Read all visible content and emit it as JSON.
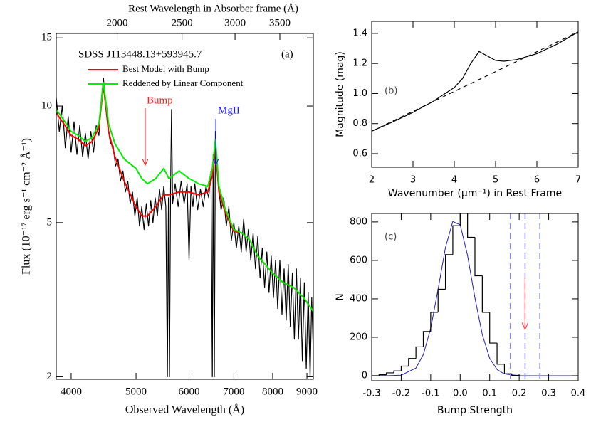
{
  "chart_data": [
    {
      "type": "line",
      "title": "SDSS J113448.13+593945.7",
      "panel_label": "(a)",
      "annotations": [
        {
          "text": "Bump",
          "color": "#ff2020"
        },
        {
          "text": "MgII",
          "color": "#2020ff"
        }
      ],
      "xlabel": "Observed Wavelength (Å)",
      "ylabel": "Flux (10⁻¹⁷ erg s⁻¹ cm⁻² Å⁻¹)",
      "x2label": "Rest Wavelength in Absorber frame (Å)",
      "xscale": "log",
      "yscale": "log",
      "xlim": [
        3800,
        9200
      ],
      "xticks": [
        4000,
        5000,
        6000,
        7000,
        8000,
        9000
      ],
      "x2lim": [
        1622,
        3927
      ],
      "x2ticks": [
        2000,
        2500,
        3000,
        3500
      ],
      "ylim": [
        1.97,
        15.4
      ],
      "yticks": [
        2,
        5,
        10,
        15
      ],
      "series": [
        {
          "color": "#000000",
          "x": [
            3800,
            3840,
            3880,
            3920,
            3960,
            4000,
            4040,
            4080,
            4120,
            4160,
            4200,
            4240,
            4280,
            4320,
            4360,
            4400,
            4440,
            4470,
            4500,
            4540,
            4580,
            4620,
            4660,
            4700,
            4740,
            4780,
            4820,
            4860,
            4900,
            4940,
            4980,
            5020,
            5060,
            5100,
            5140,
            5180,
            5220,
            5260,
            5300,
            5340,
            5380,
            5420,
            5460,
            5500,
            5540,
            5570,
            5590,
            5610,
            5630,
            5650,
            5670,
            5720,
            5780,
            5840,
            5900,
            5960,
            6000,
            6040,
            6080,
            6120,
            6180,
            6240,
            6300,
            6360,
            6420,
            6470,
            6500,
            6520,
            6545,
            6570,
            6600,
            6640,
            6700,
            6760,
            6820,
            6880,
            6940,
            7000,
            7060,
            7120,
            7180,
            7240,
            7300,
            7360,
            7420,
            7480,
            7540,
            7600,
            7660,
            7720,
            7780,
            7840,
            7900,
            7960,
            8020,
            8080,
            8140,
            8200,
            8260,
            8320,
            8380,
            8440,
            8500,
            8560,
            8620,
            8680,
            8740,
            8800,
            8860,
            8920,
            8980,
            9040,
            9100,
            9150,
            9200
          ],
          "values": [
            10.5,
            8.6,
            10.0,
            7.8,
            9.4,
            7.6,
            9.1,
            7.5,
            8.9,
            7.4,
            8.5,
            7.3,
            8.6,
            7.6,
            8.9,
            8.4,
            10.5,
            11.8,
            10.2,
            8.8,
            8.0,
            7.9,
            7.0,
            7.3,
            6.4,
            6.8,
            6.0,
            6.4,
            5.6,
            6.0,
            5.2,
            5.8,
            4.9,
            5.5,
            4.8,
            5.6,
            4.9,
            5.7,
            5.0,
            5.8,
            5.2,
            6.1,
            5.4,
            6.2,
            5.5,
            2.0,
            5.8,
            2.0,
            6.0,
            9.8,
            5.6,
            6.3,
            5.5,
            6.4,
            5.6,
            6.3,
            4.0,
            6.2,
            5.5,
            6.3,
            5.4,
            6.1,
            5.5,
            6.2,
            5.8,
            6.8,
            2.0,
            7.5,
            2.0,
            8.6,
            7.0,
            6.2,
            5.4,
            5.8,
            4.9,
            5.5,
            4.5,
            5.0,
            4.3,
            4.9,
            4.2,
            5.1,
            4.2,
            4.8,
            4.0,
            4.7,
            3.8,
            4.6,
            3.6,
            4.3,
            3.4,
            4.2,
            3.3,
            4.1,
            3.2,
            4.0,
            3.0,
            4.0,
            2.9,
            3.8,
            2.8,
            3.9,
            2.7,
            3.7,
            2.5,
            3.8,
            2.5,
            3.6,
            2.2,
            3.5,
            2.1,
            3.3,
            2.0,
            3.2,
            2.3
          ]
        },
        {
          "name": "Best Model with Bump",
          "color": "#ff0000",
          "x": [
            3800,
            3900,
            4000,
            4100,
            4200,
            4300,
            4400,
            4470,
            4550,
            4650,
            4800,
            5000,
            5100,
            5200,
            5350,
            5500,
            5600,
            5800,
            6000,
            6200,
            6400,
            6500,
            6570,
            6650,
            6800,
            7000,
            7200,
            7400,
            7600,
            7800,
            8000,
            8300,
            8600,
            8900,
            9200
          ],
          "values": [
            9.6,
            9.0,
            8.4,
            8.2,
            7.9,
            8.1,
            8.8,
            11.3,
            8.6,
            7.4,
            6.4,
            5.5,
            5.2,
            5.2,
            5.5,
            5.9,
            5.9,
            6.0,
            6.0,
            5.9,
            6.0,
            6.6,
            7.8,
            6.0,
            5.3,
            4.75,
            4.7,
            4.5,
            4.1,
            3.9,
            3.7,
            3.5,
            3.4,
            3.2,
            2.95
          ]
        },
        {
          "name": "Reddened by Linear Component",
          "color": "#00ee00",
          "x": [
            3800,
            3900,
            4000,
            4100,
            4200,
            4300,
            4400,
            4470,
            4550,
            4650,
            4800,
            5000,
            5100,
            5200,
            5350,
            5500,
            5600,
            5800,
            6000,
            6200,
            6400,
            6500,
            6570,
            6650,
            6800,
            7000,
            7200,
            7400,
            7600,
            7800,
            8000,
            8300,
            8600,
            8900,
            9200
          ],
          "values": [
            9.8,
            9.2,
            8.6,
            8.4,
            8.1,
            8.3,
            9.0,
            11.5,
            9.0,
            8.0,
            7.3,
            6.9,
            6.5,
            6.3,
            6.5,
            6.9,
            6.5,
            6.8,
            6.5,
            6.3,
            6.2,
            6.9,
            8.2,
            6.2,
            5.4,
            4.8,
            4.7,
            4.5,
            4.1,
            3.9,
            3.7,
            3.5,
            3.4,
            3.2,
            2.95
          ]
        }
      ]
    },
    {
      "type": "line",
      "panel_label": "(b)",
      "xlabel": "Wavenumber (μm⁻¹) in Rest Frame",
      "ylabel": "Magnitude (mag)",
      "xlim": [
        2,
        7
      ],
      "xticks": [
        2,
        3,
        4,
        5,
        6,
        7
      ],
      "ylim": [
        0.51,
        1.48
      ],
      "yticks": [
        0.6,
        0.8,
        {
          "value": 1,
          "label": "1.0"
        },
        1.2,
        1.4
      ],
      "series": [
        {
          "color": "#000000",
          "x": [
            2,
            2.5,
            3,
            3.5,
            4,
            4.2,
            4.4,
            4.6,
            4.8,
            5.0,
            5.2,
            5.5,
            6,
            6.5,
            7
          ],
          "values": [
            0.75,
            0.81,
            0.875,
            0.95,
            1.04,
            1.1,
            1.2,
            1.28,
            1.25,
            1.22,
            1.215,
            1.225,
            1.265,
            1.33,
            1.41
          ]
        },
        {
          "color": "#000000",
          "dash": true,
          "x": [
            2,
            7
          ],
          "values": [
            0.75,
            1.41
          ]
        }
      ]
    },
    {
      "type": "histogram",
      "panel_label": "(c)",
      "xlabel": "Bump Strength",
      "ylabel": "N",
      "xlim": [
        -0.3,
        0.4
      ],
      "xticks": [
        -0.3,
        -0.2,
        -0.1,
        {
          "value": 0,
          "label": "0.0"
        },
        0.1,
        0.2,
        0.3,
        0.4
      ],
      "ylim": [
        -26,
        844
      ],
      "yticks": [
        0,
        200,
        400,
        600,
        800
      ],
      "bins": [
        -0.3,
        -0.275,
        -0.25,
        -0.225,
        -0.2,
        -0.175,
        -0.15,
        -0.125,
        -0.1,
        -0.075,
        -0.05,
        -0.025,
        0,
        0.025,
        0.05,
        0.075,
        0.1,
        0.125,
        0.15,
        0.175,
        0.2
      ],
      "counts": [
        0,
        5,
        15,
        25,
        50,
        90,
        150,
        230,
        330,
        450,
        630,
        780,
        850,
        720,
        520,
        330,
        170,
        60,
        10,
        2
      ],
      "color": "#000000",
      "curve": {
        "color": "#2020c0",
        "x": [
          -0.3,
          -0.25,
          -0.2,
          -0.15,
          -0.125,
          -0.1,
          -0.075,
          -0.05,
          -0.025,
          0,
          0.025,
          0.05,
          0.075,
          0.1,
          0.125,
          0.15,
          0.2,
          0.3,
          0.4
        ],
        "values": [
          0,
          0.1,
          3,
          40,
          110,
          247,
          449,
          667,
          802,
          785,
          626,
          405,
          213,
          91,
          32,
          9,
          0,
          0,
          0
        ]
      },
      "vlines": {
        "values": [
          0.17,
          0.22,
          0.27
        ],
        "color": "#8888ee"
      },
      "arrow_color": "#ff5050"
    }
  ]
}
